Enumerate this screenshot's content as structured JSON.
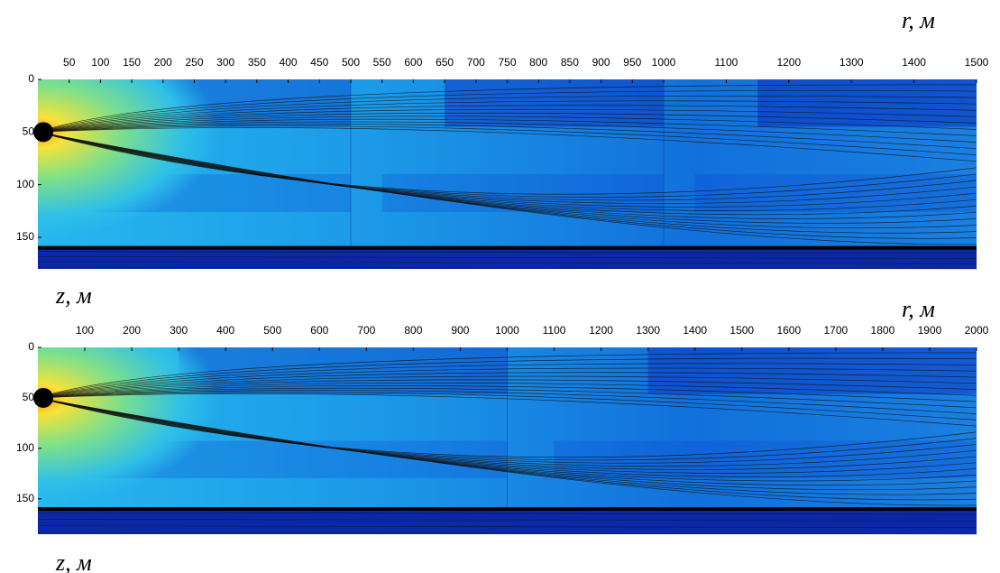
{
  "chart_data": [
    {
      "type": "heatmap",
      "xlabel": "r, м",
      "ylabel": "z, м",
      "xlim": [
        [
          0,
          500
        ],
        [
          500,
          1000
        ],
        [
          1000,
          1500
        ]
      ],
      "xticks": [
        50,
        100,
        150,
        200,
        250,
        300,
        350,
        400,
        450,
        500,
        550,
        600,
        650,
        700,
        750,
        800,
        850,
        900,
        950,
        1000,
        1100,
        1200,
        1300,
        1400,
        1500
      ],
      "ylim": [
        0,
        180
      ],
      "yticks": [
        0,
        50,
        100,
        150
      ],
      "source_depth": 50,
      "bottom_depth": 160
    },
    {
      "type": "heatmap",
      "xlabel": "r, м",
      "ylabel": "z, м",
      "xlim": [
        [
          0,
          1000
        ],
        [
          1000,
          2000
        ]
      ],
      "xticks": [
        100,
        200,
        300,
        400,
        500,
        600,
        700,
        800,
        900,
        1000,
        1100,
        1200,
        1300,
        1400,
        1500,
        1600,
        1700,
        1800,
        1900,
        2000
      ],
      "ylim": [
        0,
        185
      ],
      "yticks": [
        0,
        50,
        100,
        150
      ],
      "source_depth": 50,
      "bottom_depth": 160
    }
  ]
}
